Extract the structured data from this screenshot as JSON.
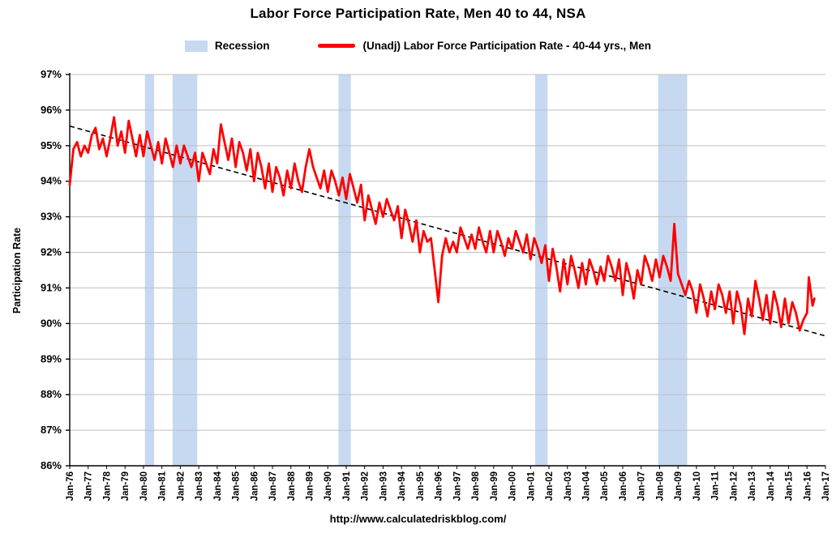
{
  "title": "Labor Force Participation Rate, Men 40 to 44, NSA",
  "footer": {
    "url_text": "http://www.calculatedriskblog.com/"
  },
  "legend": {
    "recession_label": "Recession",
    "series_label": "(Unadj) Labor Force Participation Rate - 40-44 yrs., Men"
  },
  "colors": {
    "series": "#FF0000",
    "recession": "#C6D9F1",
    "trend": "#000000",
    "grid": "#BFBFBF",
    "axis": "#000000",
    "text": "#000000"
  },
  "chart_data": {
    "type": "line",
    "title": "Labor Force Participation Rate, Men 40 to 44, NSA",
    "xlabel": "",
    "ylabel": "Participation Rate",
    "xlim": [
      1976,
      2017
    ],
    "ylim": [
      86,
      97
    ],
    "grid": "horizontal",
    "legend_position": "top",
    "y_tick_values": [
      86,
      87,
      88,
      89,
      90,
      91,
      92,
      93,
      94,
      95,
      96,
      97
    ],
    "y_tick_labels": [
      "86%",
      "87%",
      "88%",
      "89%",
      "90%",
      "91%",
      "92%",
      "93%",
      "94%",
      "95%",
      "96%",
      "97%"
    ],
    "x_tick_labels": [
      "Jan-76",
      "Jan-77",
      "Jan-78",
      "Jan-79",
      "Jan-80",
      "Jan-81",
      "Jan-82",
      "Jan-83",
      "Jan-84",
      "Jan-85",
      "Jan-86",
      "Jan-87",
      "Jan-88",
      "Jan-89",
      "Jan-90",
      "Jan-91",
      "Jan-92",
      "Jan-93",
      "Jan-94",
      "Jan-95",
      "Jan-96",
      "Jan-97",
      "Jan-98",
      "Jan-99",
      "Jan-00",
      "Jan-01",
      "Jan-02",
      "Jan-03",
      "Jan-04",
      "Jan-05",
      "Jan-06",
      "Jan-07",
      "Jan-08",
      "Jan-09",
      "Jan-10",
      "Jan-11",
      "Jan-12",
      "Jan-13",
      "Jan-14",
      "Jan-15",
      "Jan-16",
      "Jan-17"
    ],
    "recessions": [
      [
        1980.08,
        1980.58
      ],
      [
        1981.58,
        1982.92
      ],
      [
        1990.58,
        1991.25
      ],
      [
        2001.25,
        2001.92
      ],
      [
        2007.92,
        2009.5
      ]
    ],
    "trend": {
      "x": [
        1976,
        2017
      ],
      "y": [
        95.55,
        89.65
      ]
    },
    "series": [
      {
        "name": "(Unadj) Labor Force Participation Rate - 40-44 yrs., Men",
        "points": [
          [
            1976.0,
            93.9
          ],
          [
            1976.2,
            94.9
          ],
          [
            1976.4,
            95.1
          ],
          [
            1976.6,
            94.7
          ],
          [
            1976.8,
            95.0
          ],
          [
            1977.0,
            94.8
          ],
          [
            1977.2,
            95.3
          ],
          [
            1977.4,
            95.5
          ],
          [
            1977.6,
            94.9
          ],
          [
            1977.8,
            95.2
          ],
          [
            1978.0,
            94.7
          ],
          [
            1978.2,
            95.2
          ],
          [
            1978.4,
            95.8
          ],
          [
            1978.6,
            95.0
          ],
          [
            1978.8,
            95.4
          ],
          [
            1979.0,
            94.8
          ],
          [
            1979.2,
            95.7
          ],
          [
            1979.4,
            95.2
          ],
          [
            1979.6,
            94.7
          ],
          [
            1979.8,
            95.3
          ],
          [
            1980.0,
            94.7
          ],
          [
            1980.2,
            95.4
          ],
          [
            1980.4,
            95.0
          ],
          [
            1980.6,
            94.6
          ],
          [
            1980.8,
            95.1
          ],
          [
            1981.0,
            94.5
          ],
          [
            1981.2,
            95.2
          ],
          [
            1981.4,
            94.8
          ],
          [
            1981.6,
            94.4
          ],
          [
            1981.8,
            95.0
          ],
          [
            1982.0,
            94.5
          ],
          [
            1982.2,
            95.0
          ],
          [
            1982.4,
            94.7
          ],
          [
            1982.6,
            94.4
          ],
          [
            1982.8,
            94.8
          ],
          [
            1983.0,
            94.0
          ],
          [
            1983.2,
            94.8
          ],
          [
            1983.4,
            94.5
          ],
          [
            1983.6,
            94.2
          ],
          [
            1983.8,
            94.9
          ],
          [
            1984.0,
            94.5
          ],
          [
            1984.2,
            95.6
          ],
          [
            1984.4,
            95.1
          ],
          [
            1984.6,
            94.6
          ],
          [
            1984.8,
            95.2
          ],
          [
            1985.0,
            94.4
          ],
          [
            1985.2,
            95.1
          ],
          [
            1985.4,
            94.8
          ],
          [
            1985.6,
            94.3
          ],
          [
            1985.8,
            94.9
          ],
          [
            1986.0,
            94.0
          ],
          [
            1986.2,
            94.8
          ],
          [
            1986.4,
            94.4
          ],
          [
            1986.6,
            93.8
          ],
          [
            1986.8,
            94.5
          ],
          [
            1987.0,
            93.7
          ],
          [
            1987.2,
            94.4
          ],
          [
            1987.4,
            94.1
          ],
          [
            1987.6,
            93.6
          ],
          [
            1987.8,
            94.3
          ],
          [
            1988.0,
            93.8
          ],
          [
            1988.2,
            94.5
          ],
          [
            1988.4,
            94.0
          ],
          [
            1988.6,
            93.7
          ],
          [
            1988.8,
            94.4
          ],
          [
            1989.0,
            94.9
          ],
          [
            1989.2,
            94.4
          ],
          [
            1989.4,
            94.1
          ],
          [
            1989.6,
            93.8
          ],
          [
            1989.8,
            94.3
          ],
          [
            1990.0,
            93.7
          ],
          [
            1990.2,
            94.3
          ],
          [
            1990.4,
            94.0
          ],
          [
            1990.6,
            93.6
          ],
          [
            1990.8,
            94.1
          ],
          [
            1991.0,
            93.5
          ],
          [
            1991.2,
            94.2
          ],
          [
            1991.4,
            93.8
          ],
          [
            1991.6,
            93.4
          ],
          [
            1991.8,
            93.9
          ],
          [
            1992.0,
            92.9
          ],
          [
            1992.2,
            93.6
          ],
          [
            1992.4,
            93.2
          ],
          [
            1992.6,
            92.8
          ],
          [
            1992.8,
            93.4
          ],
          [
            1993.0,
            93.0
          ],
          [
            1993.2,
            93.5
          ],
          [
            1993.4,
            93.2
          ],
          [
            1993.6,
            92.9
          ],
          [
            1993.8,
            93.3
          ],
          [
            1994.0,
            92.4
          ],
          [
            1994.2,
            93.2
          ],
          [
            1994.4,
            92.8
          ],
          [
            1994.6,
            92.3
          ],
          [
            1994.8,
            92.9
          ],
          [
            1995.0,
            92.0
          ],
          [
            1995.2,
            92.6
          ],
          [
            1995.4,
            92.3
          ],
          [
            1995.6,
            92.4
          ],
          [
            1995.8,
            91.5
          ],
          [
            1996.0,
            90.6
          ],
          [
            1996.2,
            91.9
          ],
          [
            1996.4,
            92.4
          ],
          [
            1996.6,
            92.0
          ],
          [
            1996.8,
            92.3
          ],
          [
            1997.0,
            92.0
          ],
          [
            1997.2,
            92.7
          ],
          [
            1997.4,
            92.4
          ],
          [
            1997.6,
            92.1
          ],
          [
            1997.8,
            92.5
          ],
          [
            1998.0,
            92.1
          ],
          [
            1998.2,
            92.7
          ],
          [
            1998.4,
            92.3
          ],
          [
            1998.6,
            92.0
          ],
          [
            1998.8,
            92.6
          ],
          [
            1999.0,
            92.0
          ],
          [
            1999.2,
            92.6
          ],
          [
            1999.4,
            92.3
          ],
          [
            1999.6,
            91.9
          ],
          [
            1999.8,
            92.4
          ],
          [
            2000.0,
            92.1
          ],
          [
            2000.2,
            92.6
          ],
          [
            2000.4,
            92.3
          ],
          [
            2000.6,
            92.0
          ],
          [
            2000.8,
            92.5
          ],
          [
            2001.0,
            91.8
          ],
          [
            2001.2,
            92.4
          ],
          [
            2001.4,
            92.1
          ],
          [
            2001.6,
            91.7
          ],
          [
            2001.8,
            92.2
          ],
          [
            2002.0,
            91.2
          ],
          [
            2002.2,
            92.1
          ],
          [
            2002.4,
            91.6
          ],
          [
            2002.6,
            90.9
          ],
          [
            2002.8,
            91.8
          ],
          [
            2003.0,
            91.1
          ],
          [
            2003.2,
            91.9
          ],
          [
            2003.4,
            91.5
          ],
          [
            2003.6,
            91.0
          ],
          [
            2003.8,
            91.7
          ],
          [
            2004.0,
            91.1
          ],
          [
            2004.2,
            91.8
          ],
          [
            2004.4,
            91.5
          ],
          [
            2004.6,
            91.1
          ],
          [
            2004.8,
            91.6
          ],
          [
            2005.0,
            91.2
          ],
          [
            2005.2,
            91.9
          ],
          [
            2005.4,
            91.6
          ],
          [
            2005.6,
            91.2
          ],
          [
            2005.8,
            91.8
          ],
          [
            2006.0,
            90.8
          ],
          [
            2006.2,
            91.7
          ],
          [
            2006.4,
            91.3
          ],
          [
            2006.6,
            90.7
          ],
          [
            2006.8,
            91.5
          ],
          [
            2007.0,
            91.1
          ],
          [
            2007.2,
            91.9
          ],
          [
            2007.4,
            91.6
          ],
          [
            2007.6,
            91.2
          ],
          [
            2007.8,
            91.8
          ],
          [
            2008.0,
            91.3
          ],
          [
            2008.2,
            91.9
          ],
          [
            2008.4,
            91.6
          ],
          [
            2008.6,
            91.2
          ],
          [
            2008.8,
            92.8
          ],
          [
            2009.0,
            91.4
          ],
          [
            2009.2,
            91.1
          ],
          [
            2009.4,
            90.8
          ],
          [
            2009.6,
            91.2
          ],
          [
            2009.8,
            90.9
          ],
          [
            2010.0,
            90.3
          ],
          [
            2010.2,
            91.1
          ],
          [
            2010.4,
            90.7
          ],
          [
            2010.6,
            90.2
          ],
          [
            2010.8,
            90.9
          ],
          [
            2011.0,
            90.4
          ],
          [
            2011.2,
            91.1
          ],
          [
            2011.4,
            90.8
          ],
          [
            2011.6,
            90.3
          ],
          [
            2011.8,
            90.9
          ],
          [
            2012.0,
            90.0
          ],
          [
            2012.2,
            90.9
          ],
          [
            2012.4,
            90.5
          ],
          [
            2012.6,
            89.7
          ],
          [
            2012.8,
            90.7
          ],
          [
            2013.0,
            90.2
          ],
          [
            2013.2,
            91.2
          ],
          [
            2013.4,
            90.7
          ],
          [
            2013.6,
            90.1
          ],
          [
            2013.8,
            90.8
          ],
          [
            2014.0,
            90.0
          ],
          [
            2014.2,
            90.9
          ],
          [
            2014.4,
            90.5
          ],
          [
            2014.6,
            89.9
          ],
          [
            2014.8,
            90.7
          ],
          [
            2015.0,
            90.0
          ],
          [
            2015.2,
            90.6
          ],
          [
            2015.4,
            90.3
          ],
          [
            2015.6,
            89.8
          ],
          [
            2015.8,
            90.1
          ],
          [
            2016.0,
            90.3
          ],
          [
            2016.1,
            91.3
          ],
          [
            2016.3,
            90.5
          ],
          [
            2016.4,
            90.7
          ]
        ]
      }
    ]
  }
}
